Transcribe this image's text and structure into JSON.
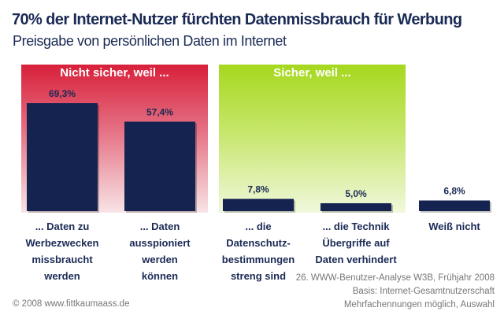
{
  "chart_data": {
    "type": "bar",
    "title": "70% der Internet-Nutzer fürchten Datenmissbrauch für Werbung",
    "subtitle": "Preisgabe von persönlichen Daten im Internet",
    "groups": [
      {
        "label": "Nicht sicher, weil ...",
        "color": "#d8203a",
        "categories": [
          0,
          1
        ]
      },
      {
        "label": "Sicher,  weil ...",
        "color": "#a6d81e",
        "categories": [
          2,
          3
        ]
      }
    ],
    "categories": [
      [
        "... Daten zu",
        "Werbezwecken",
        "missbraucht",
        "werden"
      ],
      [
        "... Daten",
        "ausspioniert",
        "werden",
        "können"
      ],
      [
        "... die",
        "Datenschutz-",
        "bestimmungen",
        "streng sind"
      ],
      [
        "... die Technik",
        "Übergriffe auf",
        "Daten verhindert"
      ],
      [
        "Weiß nicht"
      ]
    ],
    "values": [
      69.3,
      57.4,
      7.8,
      5.0,
      6.8
    ],
    "value_labels": [
      "69,3%",
      "57,4%",
      "7,8%",
      "5,0%",
      "6,8%"
    ],
    "unit": "%",
    "bar_color": "#14234f",
    "ylim": [
      0,
      70
    ],
    "grid": false,
    "legend": "none"
  },
  "footer": {
    "copyright": "© 2008 www.fittkaumaass.de",
    "source_lines": [
      "26. WWW-Benutzer-Analyse W3B, Frühjahr 2008",
      "Basis: Internet-Gesamtnutzerschaft",
      "Mehrfachennungen möglich, Auswahl"
    ]
  }
}
